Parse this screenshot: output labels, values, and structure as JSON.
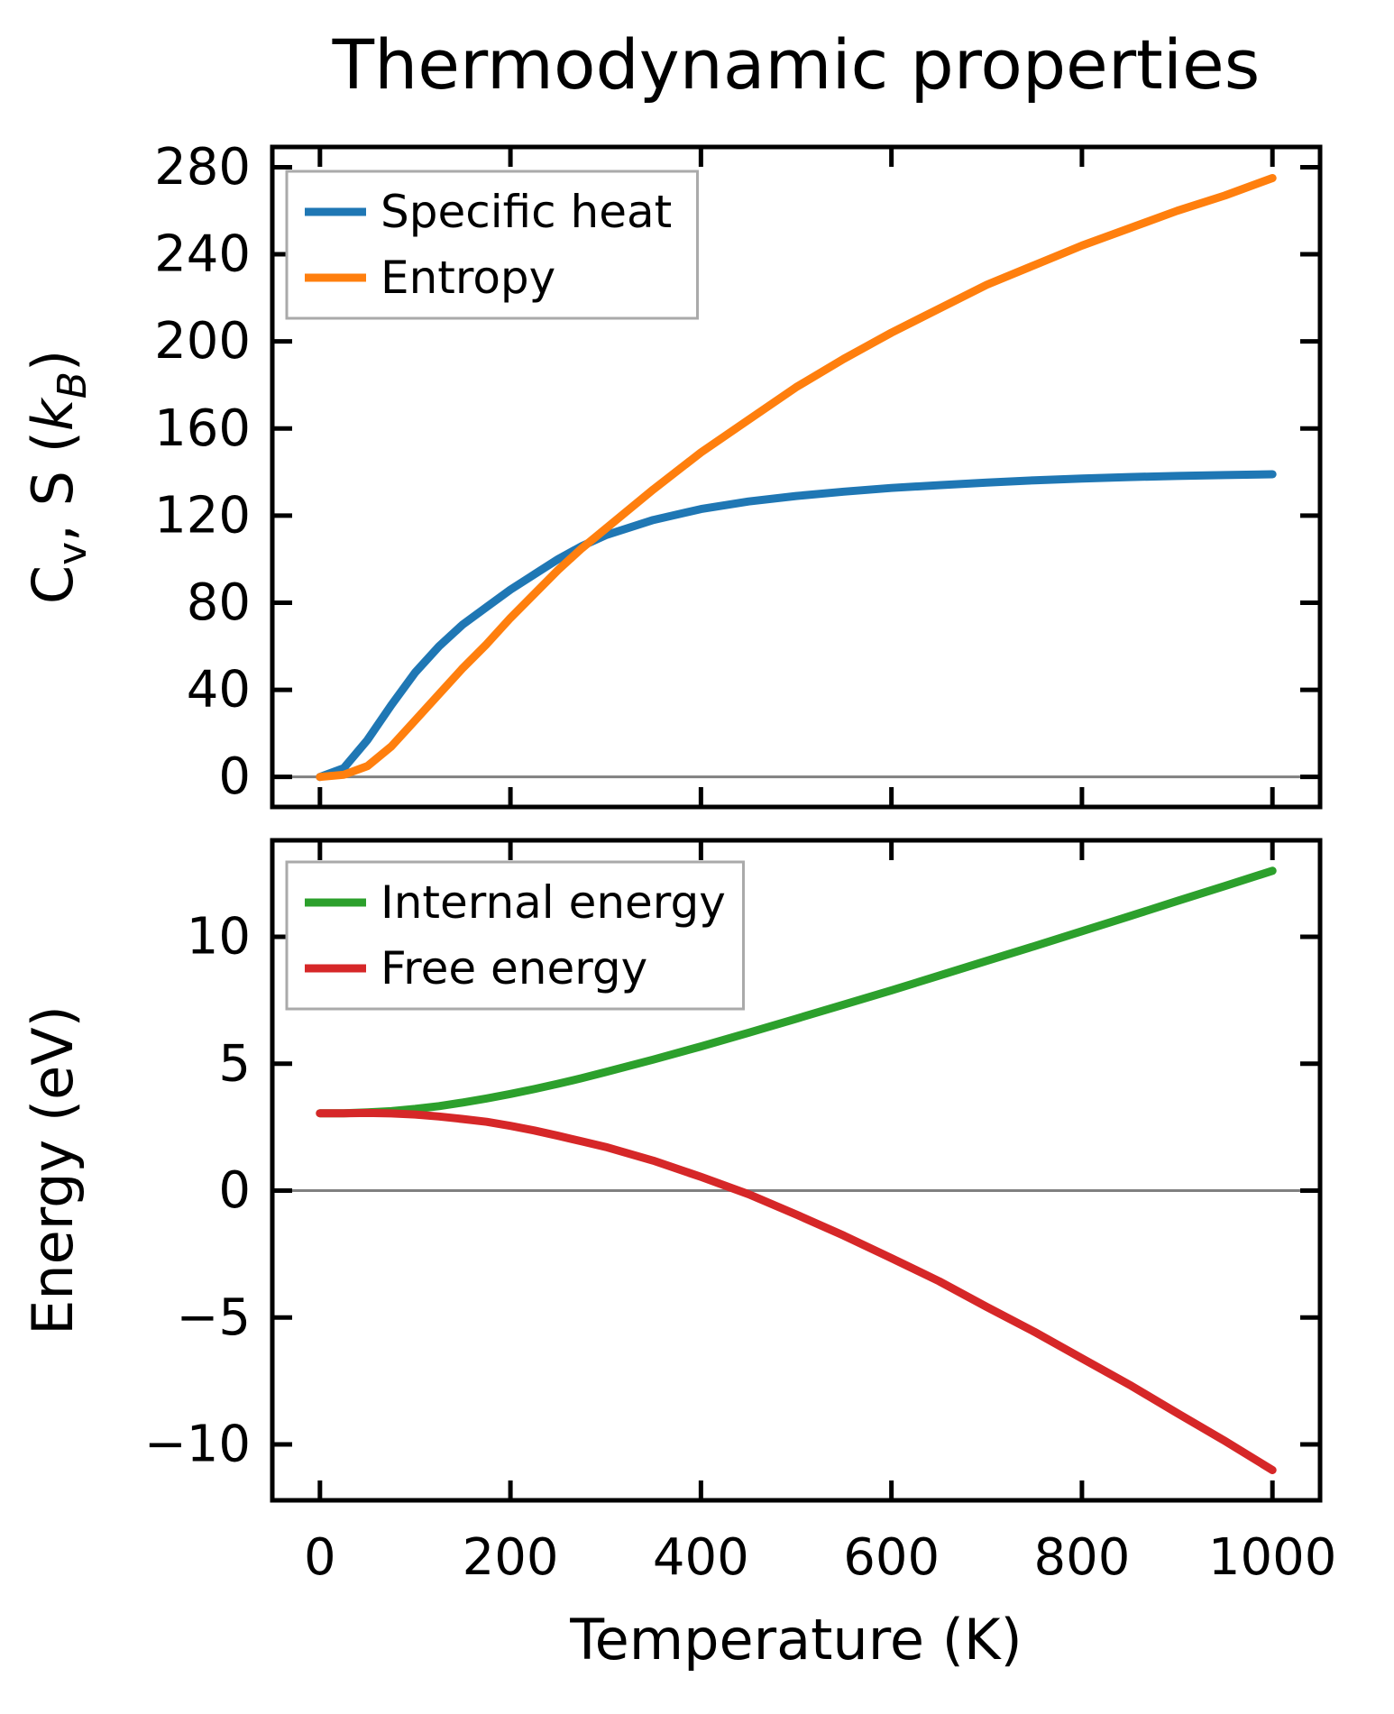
{
  "title": "Thermodynamic properties",
  "colors": {
    "specific_heat": "#1f77b4",
    "entropy": "#ff7f0e",
    "internal_energy": "#2ca02c",
    "free_energy": "#d62728",
    "zero_line": "#808080",
    "legend_border": "#aaaaaa",
    "spine": "#000000",
    "text": "#000000",
    "background": "#ffffff"
  },
  "chart_data": [
    {
      "type": "line",
      "title": "Thermodynamic properties",
      "xlabel": "",
      "ylabel": "Cv, S (kB)",
      "ylabel_segments": [
        {
          "t": "C"
        },
        {
          "t": "v",
          "sub": true
        },
        {
          "t": ", S ("
        },
        {
          "t": "k",
          "italic": true
        },
        {
          "t": "B",
          "sub": true,
          "italic": true
        },
        {
          "t": ")"
        }
      ],
      "xlim": [
        -50,
        1050
      ],
      "ylim": [
        -13.8,
        289.3
      ],
      "xticks": [
        0,
        200,
        400,
        600,
        800,
        1000
      ],
      "xtick_labels": [
        "0",
        "200",
        "400",
        "600",
        "800",
        "1000"
      ],
      "x_tick_labels_visible": false,
      "yticks": [
        0,
        40,
        80,
        120,
        160,
        200,
        240,
        280
      ],
      "ytick_labels": [
        "0",
        "40",
        "80",
        "120",
        "160",
        "200",
        "240",
        "280"
      ],
      "grid": false,
      "zero_line": true,
      "legend": {
        "position": "upper left",
        "entries": [
          {
            "label": "Specific heat",
            "color": "#1f77b4"
          },
          {
            "label": "Entropy",
            "color": "#ff7f0e"
          }
        ]
      },
      "x": [
        0,
        25,
        50,
        75,
        100,
        125,
        150,
        175,
        200,
        225,
        250,
        275,
        300,
        350,
        400,
        450,
        500,
        550,
        600,
        650,
        700,
        750,
        800,
        850,
        900,
        950,
        1000
      ],
      "series": [
        {
          "name": "Specific heat",
          "color": "#1f77b4",
          "values": [
            0,
            4,
            17,
            33,
            48,
            60,
            70,
            78,
            86,
            93,
            100,
            106,
            111,
            118,
            123,
            126.5,
            129,
            131,
            132.7,
            134,
            135.2,
            136.2,
            137,
            137.7,
            138.2,
            138.6,
            139
          ]
        },
        {
          "name": "Entropy",
          "color": "#ff7f0e",
          "values": [
            0,
            1,
            5,
            14,
            26,
            38,
            50,
            61,
            73,
            84,
            95,
            105,
            114,
            132,
            149,
            164,
            179,
            192,
            204,
            215,
            226,
            235,
            244,
            252,
            260,
            267,
            275
          ]
        }
      ]
    },
    {
      "type": "line",
      "title": "",
      "xlabel": "Temperature (K)",
      "ylabel": "Energy (eV)",
      "ylabel_segments": [
        {
          "t": "Energy (eV)"
        }
      ],
      "xlim": [
        -50,
        1050
      ],
      "ylim": [
        -12.2,
        13.8
      ],
      "xticks": [
        0,
        200,
        400,
        600,
        800,
        1000
      ],
      "xtick_labels": [
        "0",
        "200",
        "400",
        "600",
        "800",
        "1000"
      ],
      "x_tick_labels_visible": true,
      "yticks": [
        10,
        5,
        0,
        -5,
        -10
      ],
      "ytick_labels": [
        "10",
        "5",
        "0",
        "−5",
        "−10"
      ],
      "grid": false,
      "zero_line": true,
      "legend": {
        "position": "upper left",
        "entries": [
          {
            "label": "Internal energy",
            "color": "#2ca02c"
          },
          {
            "label": "Free energy",
            "color": "#d62728"
          }
        ]
      },
      "x": [
        0,
        25,
        50,
        75,
        100,
        125,
        150,
        175,
        200,
        225,
        250,
        275,
        300,
        350,
        400,
        450,
        500,
        550,
        600,
        650,
        700,
        750,
        800,
        850,
        900,
        950,
        1000
      ],
      "series": [
        {
          "name": "Internal energy",
          "color": "#2ca02c",
          "values": [
            3.05,
            3.05,
            3.08,
            3.13,
            3.22,
            3.33,
            3.47,
            3.63,
            3.81,
            4.0,
            4.21,
            4.43,
            4.67,
            5.16,
            5.68,
            6.22,
            6.77,
            7.33,
            7.89,
            8.47,
            9.05,
            9.63,
            10.22,
            10.81,
            11.41,
            12.0,
            12.6
          ]
        },
        {
          "name": "Free energy",
          "color": "#d62728",
          "values": [
            3.05,
            3.05,
            3.06,
            3.04,
            3.0,
            2.92,
            2.82,
            2.71,
            2.55,
            2.37,
            2.16,
            1.94,
            1.72,
            1.18,
            0.54,
            -0.14,
            -0.94,
            -1.77,
            -2.66,
            -3.57,
            -4.58,
            -5.56,
            -6.61,
            -7.65,
            -8.76,
            -9.86,
            -11.01
          ]
        }
      ]
    }
  ]
}
